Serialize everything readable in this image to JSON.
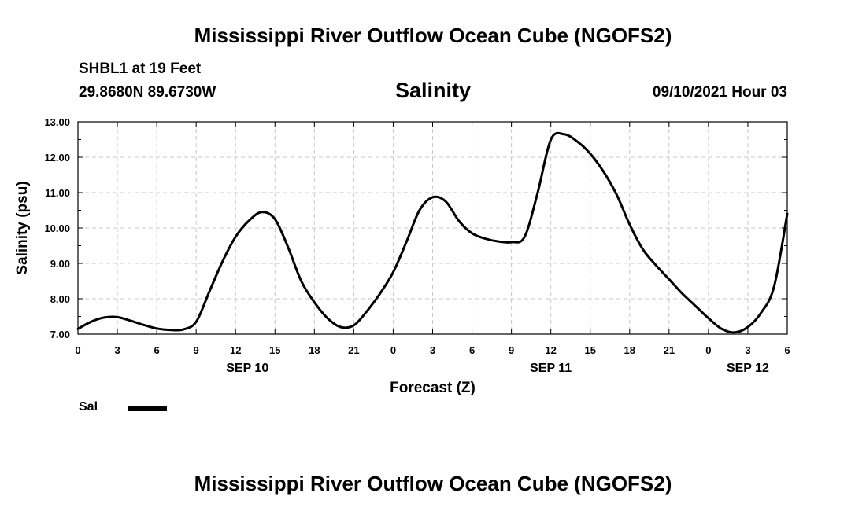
{
  "title": "Mississippi River Outflow Ocean Cube (NGOFS2)",
  "footer_title": "Mississippi River Outflow Ocean Cube (NGOFS2)",
  "station": "SHBL1 at 19 Feet",
  "coordinates": "29.8680N  89.6730W",
  "variable": "Salinity",
  "datetime": "09/10/2021 Hour 03",
  "legend": {
    "label": "Sal",
    "color": "#000000"
  },
  "chart_data": {
    "type": "line",
    "title": "Salinity",
    "xlabel": "Forecast (Z)",
    "ylabel": "Salinity (psu)",
    "ylim": [
      7.0,
      13.0
    ],
    "xlim": [
      0,
      54
    ],
    "grid": true,
    "y_ticks": [
      "7.00",
      "8.00",
      "9.00",
      "10.00",
      "11.00",
      "12.00",
      "13.00"
    ],
    "x_ticks": [
      "0",
      "3",
      "6",
      "9",
      "12",
      "15",
      "18",
      "21",
      "0",
      "3",
      "6",
      "9",
      "12",
      "15",
      "18",
      "21",
      "0",
      "3",
      "6"
    ],
    "date_labels": [
      {
        "label": "SEP 10",
        "hour": 12.9
      },
      {
        "label": "SEP 11",
        "hour": 36
      },
      {
        "label": "SEP 12",
        "hour": 51
      }
    ],
    "series": [
      {
        "name": "Sal",
        "color": "#000000",
        "x": [
          0,
          1,
          2,
          3,
          4,
          5,
          6,
          7,
          8,
          9,
          10,
          11,
          12,
          13,
          14,
          15,
          16,
          17,
          18,
          19,
          20,
          21,
          22,
          23,
          24,
          25,
          26,
          27,
          28,
          29,
          30,
          31,
          32,
          33,
          34,
          35,
          36,
          37,
          38,
          39,
          40,
          41,
          42,
          43,
          44,
          45,
          46,
          47,
          48,
          49,
          50,
          51,
          52,
          53,
          54
        ],
        "values": [
          7.15,
          7.35,
          7.47,
          7.48,
          7.38,
          7.26,
          7.16,
          7.12,
          7.13,
          7.35,
          8.2,
          9.05,
          9.75,
          10.2,
          10.45,
          10.25,
          9.45,
          8.5,
          7.9,
          7.45,
          7.2,
          7.25,
          7.65,
          8.15,
          8.75,
          9.6,
          10.5,
          10.87,
          10.75,
          10.2,
          9.85,
          9.7,
          9.62,
          9.6,
          9.75,
          11.0,
          12.5,
          12.65,
          12.45,
          12.1,
          11.6,
          10.95,
          10.1,
          9.4,
          8.95,
          8.55,
          8.15,
          7.8,
          7.45,
          7.15,
          7.05,
          7.2,
          7.6,
          8.35,
          10.4
        ]
      }
    ]
  }
}
